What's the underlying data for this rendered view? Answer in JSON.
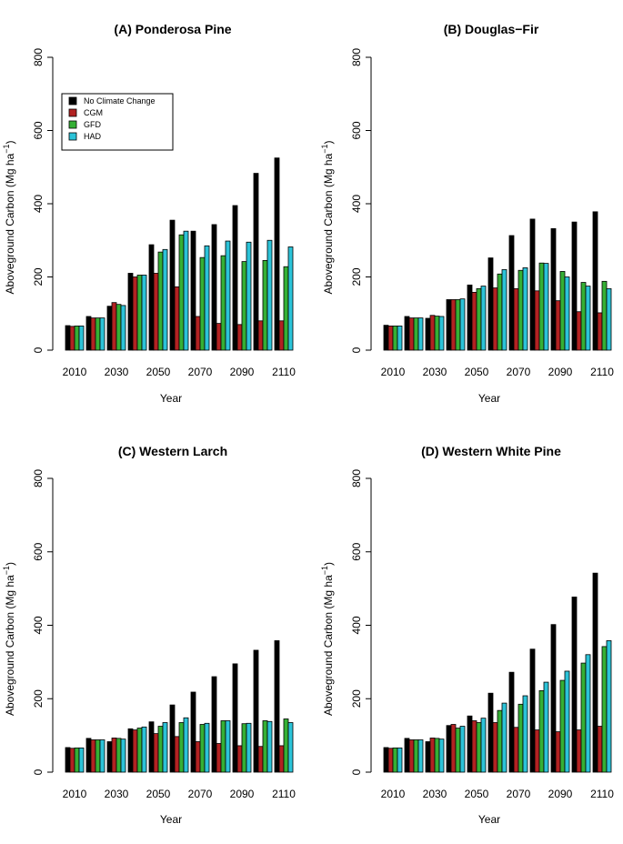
{
  "colors": {
    "No Climate Change": "#000000",
    "CGM": "#b22222",
    "GFD": "#35b035",
    "HAD": "#2cc3d8"
  },
  "chart_data": [
    {
      "type": "bar",
      "title": "(A) Ponderosa Pine",
      "xlabel": "Year",
      "ylabel": "Aboveground Carbon (Mg ha",
      "ylabel_sup": "−1",
      "ylabel_close": ")",
      "ylim": [
        0,
        800
      ],
      "yticks": [
        "0",
        "200",
        "400",
        "600",
        "800"
      ],
      "x": [
        2010,
        2020,
        2030,
        2040,
        2050,
        2060,
        2070,
        2080,
        2090,
        2100,
        2110
      ],
      "xtick_labels": [
        "2010",
        "2030",
        "2050",
        "2070",
        "2090",
        "2110"
      ],
      "legend": {
        "position": "top-left",
        "entries": [
          "No Climate Change",
          "CGM",
          "GFD",
          "HAD"
        ]
      },
      "series": [
        {
          "name": "No Climate Change",
          "values": [
            67,
            92,
            120,
            210,
            288,
            355,
            325,
            343,
            395,
            483,
            525
          ]
        },
        {
          "name": "CGM",
          "values": [
            65,
            88,
            130,
            200,
            210,
            173,
            92,
            73,
            70,
            80,
            80
          ]
        },
        {
          "name": "GFD",
          "values": [
            66,
            88,
            125,
            205,
            268,
            315,
            253,
            258,
            242,
            245,
            228
          ]
        },
        {
          "name": "HAD",
          "values": [
            66,
            88,
            122,
            205,
            275,
            325,
            285,
            298,
            295,
            300,
            282
          ]
        }
      ]
    },
    {
      "type": "bar",
      "title": "(B) Douglas−Fir",
      "xlabel": "Year",
      "ylabel": "Aboveground Carbon (Mg ha",
      "ylabel_sup": "−1",
      "ylabel_close": ")",
      "ylim": [
        0,
        800
      ],
      "yticks": [
        "0",
        "200",
        "400",
        "600",
        "800"
      ],
      "x": [
        2010,
        2020,
        2030,
        2040,
        2050,
        2060,
        2070,
        2080,
        2090,
        2100,
        2110
      ],
      "xtick_labels": [
        "2010",
        "2030",
        "2050",
        "2070",
        "2090",
        "2110"
      ],
      "series": [
        {
          "name": "No Climate Change",
          "values": [
            68,
            92,
            87,
            138,
            178,
            252,
            313,
            358,
            332,
            350,
            378
          ]
        },
        {
          "name": "CGM",
          "values": [
            66,
            88,
            95,
            138,
            158,
            170,
            168,
            162,
            135,
            105,
            102
          ]
        },
        {
          "name": "GFD",
          "values": [
            66,
            88,
            93,
            138,
            168,
            208,
            218,
            238,
            215,
            185,
            188
          ]
        },
        {
          "name": "HAD",
          "values": [
            66,
            88,
            92,
            140,
            175,
            220,
            225,
            237,
            200,
            175,
            168
          ]
        }
      ]
    },
    {
      "type": "bar",
      "title": "(C) Western Larch",
      "xlabel": "Year",
      "ylabel": "Aboveground Carbon (Mg ha",
      "ylabel_sup": "−1",
      "ylabel_close": ")",
      "ylim": [
        0,
        800
      ],
      "yticks": [
        "0",
        "200",
        "400",
        "600",
        "800"
      ],
      "x": [
        2010,
        2020,
        2030,
        2040,
        2050,
        2060,
        2070,
        2080,
        2090,
        2100,
        2110
      ],
      "xtick_labels": [
        "2010",
        "2030",
        "2050",
        "2070",
        "2090",
        "2110"
      ],
      "series": [
        {
          "name": "No Climate Change",
          "values": [
            67,
            92,
            83,
            118,
            137,
            183,
            218,
            260,
            295,
            332,
            358
          ]
        },
        {
          "name": "CGM",
          "values": [
            65,
            88,
            93,
            115,
            105,
            97,
            83,
            78,
            72,
            70,
            72
          ]
        },
        {
          "name": "GFD",
          "values": [
            66,
            88,
            92,
            120,
            125,
            135,
            130,
            140,
            132,
            140,
            145
          ]
        },
        {
          "name": "HAD",
          "values": [
            66,
            88,
            90,
            123,
            135,
            148,
            133,
            140,
            133,
            138,
            135
          ]
        }
      ]
    },
    {
      "type": "bar",
      "title": "(D) Western White Pine",
      "xlabel": "Year",
      "ylabel": "Aboveground Carbon (Mg ha",
      "ylabel_sup": "−1",
      "ylabel_close": ")",
      "ylim": [
        0,
        800
      ],
      "yticks": [
        "0",
        "200",
        "400",
        "600",
        "800"
      ],
      "x": [
        2010,
        2020,
        2030,
        2040,
        2050,
        2060,
        2070,
        2080,
        2090,
        2100,
        2110
      ],
      "xtick_labels": [
        "2010",
        "2030",
        "2050",
        "2070",
        "2090",
        "2110"
      ],
      "series": [
        {
          "name": "No Climate Change",
          "values": [
            67,
            92,
            83,
            127,
            153,
            215,
            272,
            335,
            402,
            477,
            542
          ]
        },
        {
          "name": "CGM",
          "values": [
            65,
            88,
            93,
            130,
            140,
            135,
            122,
            115,
            110,
            115,
            125
          ]
        },
        {
          "name": "GFD",
          "values": [
            66,
            88,
            92,
            120,
            135,
            168,
            185,
            222,
            250,
            297,
            342
          ]
        },
        {
          "name": "HAD",
          "values": [
            66,
            88,
            90,
            125,
            147,
            188,
            208,
            245,
            275,
            320,
            358
          ]
        }
      ]
    }
  ]
}
